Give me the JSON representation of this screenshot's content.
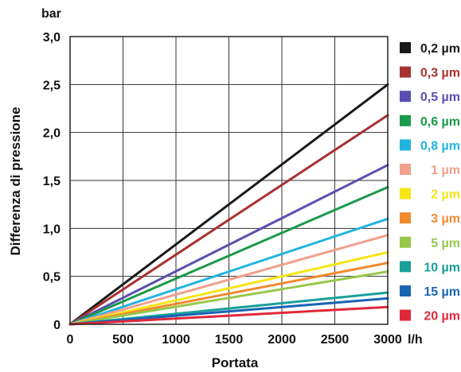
{
  "chart_data": {
    "type": "line",
    "title": "",
    "xlabel": "Portata",
    "ylabel": "Differenza di pressione",
    "x_unit": "l/h",
    "y_unit": "bar",
    "xlim": [
      0,
      3000
    ],
    "ylim": [
      0,
      3.0
    ],
    "x_ticks": [
      "0",
      "500",
      "1000",
      "1500",
      "2000",
      "2500",
      "3000"
    ],
    "y_ticks": [
      "0",
      "0,5",
      "1,0",
      "1,5",
      "2,0",
      "2,5",
      "3,0"
    ],
    "grid": true,
    "legend_position": "right",
    "series": [
      {
        "name": "0,2 µm",
        "color": "#1a1a1a",
        "x": [
          0,
          3000
        ],
        "y": [
          0,
          2.5
        ]
      },
      {
        "name": "0,3 µm",
        "color": "#a83232",
        "x": [
          0,
          3000
        ],
        "y": [
          0,
          2.18
        ]
      },
      {
        "name": "0,5 µm",
        "color": "#5a4fb0",
        "x": [
          0,
          3000
        ],
        "y": [
          0,
          1.66
        ]
      },
      {
        "name": "0,6 µm",
        "color": "#1a9a4a",
        "x": [
          0,
          3000
        ],
        "y": [
          0,
          1.43
        ]
      },
      {
        "name": "0,8 µm",
        "color": "#22b4e0",
        "x": [
          0,
          3000
        ],
        "y": [
          0,
          1.1
        ]
      },
      {
        "name": "1 µm",
        "color": "#f0a08c",
        "x": [
          0,
          3000
        ],
        "y": [
          0,
          0.93
        ]
      },
      {
        "name": "2 µm",
        "color": "#f5e615",
        "x": [
          0,
          3000
        ],
        "y": [
          0,
          0.75
        ]
      },
      {
        "name": "3 µm",
        "color": "#f08a30",
        "x": [
          0,
          3000
        ],
        "y": [
          0,
          0.64
        ]
      },
      {
        "name": "5 µm",
        "color": "#96c84a",
        "x": [
          0,
          3000
        ],
        "y": [
          0,
          0.55
        ]
      },
      {
        "name": "10 µm",
        "color": "#1aa09a",
        "x": [
          0,
          3000
        ],
        "y": [
          0,
          0.33
        ]
      },
      {
        "name": "15 µm",
        "color": "#1a64b4",
        "x": [
          0,
          3000
        ],
        "y": [
          0,
          0.27
        ]
      },
      {
        "name": "20 µm",
        "color": "#e0283a",
        "x": [
          0,
          3000
        ],
        "y": [
          0,
          0.18
        ]
      }
    ]
  }
}
